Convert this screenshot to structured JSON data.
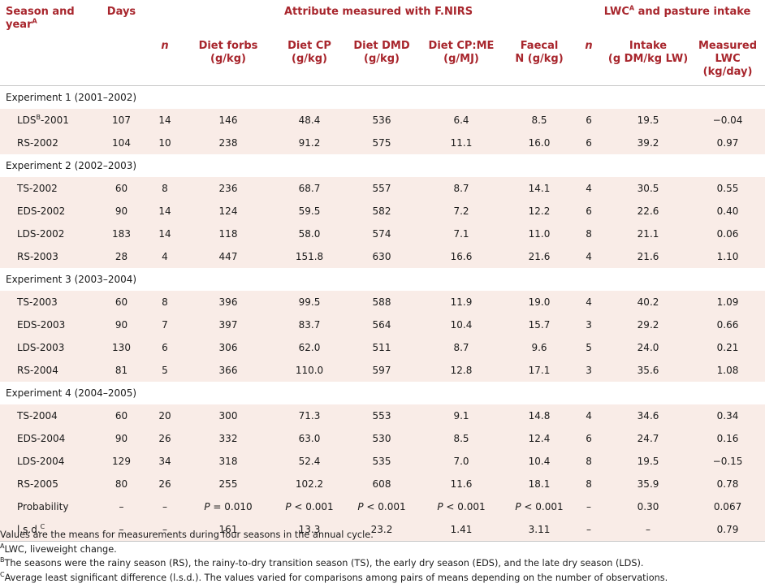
{
  "header": {
    "season_year": "Season and year",
    "season_year_sup": "A",
    "days": "Days",
    "attr_group": "Attribute measured with F.NIRS",
    "lwc_group": "LWC",
    "lwc_group_sup": "A",
    "lwc_group_rest": " and pasture intake",
    "n": "n",
    "diet_forbs": "Diet forbs",
    "diet_forbs_unit": "(g/kg)",
    "diet_cp": "Diet CP",
    "diet_cp_unit": "(g/kg)",
    "diet_dmd": "Diet DMD",
    "diet_dmd_unit": "(g/kg)",
    "diet_cpme": "Diet CP:ME",
    "diet_cpme_unit": "(g/MJ)",
    "faecal": "Faecal",
    "faecal_unit": "N (g/kg)",
    "n2": "n",
    "intake": "Intake",
    "intake_unit": "(g DM/kg LW)",
    "measured": "Measured",
    "measured_l2": "LWC",
    "measured_unit": "(kg/day)"
  },
  "sections": [
    {
      "label": "Experiment 1 (2001–2002)",
      "rows": [
        {
          "season": "LDS",
          "sup": "B",
          "suffix": "-2001",
          "days": "107",
          "n": "14",
          "forbs": "146",
          "cp": "48.4",
          "dmd": "536",
          "cpme": "6.4",
          "faecal": "8.5",
          "n2": "6",
          "intake": "19.5",
          "lwc": "−0.04"
        },
        {
          "season": "RS-2002",
          "sup": "",
          "suffix": "",
          "days": "104",
          "n": "10",
          "forbs": "238",
          "cp": "91.2",
          "dmd": "575",
          "cpme": "11.1",
          "faecal": "16.0",
          "n2": "6",
          "intake": "39.2",
          "lwc": "0.97"
        }
      ]
    },
    {
      "label": "Experiment 2 (2002–2003)",
      "rows": [
        {
          "season": "TS-2002",
          "sup": "",
          "suffix": "",
          "days": "60",
          "n": "8",
          "forbs": "236",
          "cp": "68.7",
          "dmd": "557",
          "cpme": "8.7",
          "faecal": "14.1",
          "n2": "4",
          "intake": "30.5",
          "lwc": "0.55"
        },
        {
          "season": "EDS-2002",
          "sup": "",
          "suffix": "",
          "days": "90",
          "n": "14",
          "forbs": "124",
          "cp": "59.5",
          "dmd": "582",
          "cpme": "7.2",
          "faecal": "12.2",
          "n2": "6",
          "intake": "22.6",
          "lwc": "0.40"
        },
        {
          "season": "LDS-2002",
          "sup": "",
          "suffix": "",
          "days": "183",
          "n": "14",
          "forbs": "118",
          "cp": "58.0",
          "dmd": "574",
          "cpme": "7.1",
          "faecal": "11.0",
          "n2": "8",
          "intake": "21.1",
          "lwc": "0.06"
        },
        {
          "season": "RS-2003",
          "sup": "",
          "suffix": "",
          "days": "28",
          "n": "4",
          "forbs": "447",
          "cp": "151.8",
          "dmd": "630",
          "cpme": "16.6",
          "faecal": "21.6",
          "n2": "4",
          "intake": "21.6",
          "lwc": "1.10"
        }
      ]
    },
    {
      "label": "Experiment 3 (2003–2004)",
      "rows": [
        {
          "season": "TS-2003",
          "sup": "",
          "suffix": "",
          "days": "60",
          "n": "8",
          "forbs": "396",
          "cp": "99.5",
          "dmd": "588",
          "cpme": "11.9",
          "faecal": "19.0",
          "n2": "4",
          "intake": "40.2",
          "lwc": "1.09"
        },
        {
          "season": "EDS-2003",
          "sup": "",
          "suffix": "",
          "days": "90",
          "n": "7",
          "forbs": "397",
          "cp": "83.7",
          "dmd": "564",
          "cpme": "10.4",
          "faecal": "15.7",
          "n2": "3",
          "intake": "29.2",
          "lwc": "0.66"
        },
        {
          "season": "LDS-2003",
          "sup": "",
          "suffix": "",
          "days": "130",
          "n": "6",
          "forbs": "306",
          "cp": "62.0",
          "dmd": "511",
          "cpme": "8.7",
          "faecal": "9.6",
          "n2": "5",
          "intake": "24.0",
          "lwc": "0.21"
        },
        {
          "season": "RS-2004",
          "sup": "",
          "suffix": "",
          "days": "81",
          "n": "5",
          "forbs": "366",
          "cp": "110.0",
          "dmd": "597",
          "cpme": "12.8",
          "faecal": "17.1",
          "n2": "3",
          "intake": "35.6",
          "lwc": "1.08"
        }
      ]
    },
    {
      "label": "Experiment 4 (2004–2005)",
      "rows": [
        {
          "season": "TS-2004",
          "sup": "",
          "suffix": "",
          "days": "60",
          "n": "20",
          "forbs": "300",
          "cp": "71.3",
          "dmd": "553",
          "cpme": "9.1",
          "faecal": "14.8",
          "n2": "4",
          "intake": "34.6",
          "lwc": "0.34"
        },
        {
          "season": "EDS-2004",
          "sup": "",
          "suffix": "",
          "days": "90",
          "n": "26",
          "forbs": "332",
          "cp": "63.0",
          "dmd": "530",
          "cpme": "8.5",
          "faecal": "12.4",
          "n2": "6",
          "intake": "24.7",
          "lwc": "0.16"
        },
        {
          "season": "LDS-2004",
          "sup": "",
          "suffix": "",
          "days": "129",
          "n": "34",
          "forbs": "318",
          "cp": "52.4",
          "dmd": "535",
          "cpme": "7.0",
          "faecal": "10.4",
          "n2": "8",
          "intake": "19.5",
          "lwc": "−0.15"
        },
        {
          "season": "RS-2005",
          "sup": "",
          "suffix": "",
          "days": "80",
          "n": "26",
          "forbs": "255",
          "cp": "102.2",
          "dmd": "608",
          "cpme": "11.6",
          "faecal": "18.1",
          "n2": "8",
          "intake": "35.9",
          "lwc": "0.78"
        }
      ]
    }
  ],
  "probability": {
    "label": "Probability",
    "days": "–",
    "n": "–",
    "forbs_p": "P",
    "forbs_v": " = 0.010",
    "cp_p": "P",
    "cp_v": " < 0.001",
    "dmd_p": "P",
    "dmd_v": " < 0.001",
    "cpme_p": "P",
    "cpme_v": " < 0.001",
    "faecal_p": "P",
    "faecal_v": " < 0.001",
    "n2": "–",
    "intake": "0.30",
    "lwc": "0.067"
  },
  "lsd": {
    "label": "l.s.d.",
    "sup": "C",
    "days": "–",
    "n": "–",
    "forbs": "161",
    "cp": "13.3",
    "dmd": "23.2",
    "cpme": "1.41",
    "faecal": "3.11",
    "n2": "–",
    "intake": "–",
    "lwc": "0.79"
  },
  "footnotes": {
    "main": "Values are the means for measurements during four seasons in the annual cycle.",
    "a_sup": "A",
    "a": "LWC, liveweight change.",
    "b_sup": "B",
    "b": "The seasons were the rainy season (RS), the rainy-to-dry transition season (TS), the early dry season (EDS), and the late dry season (LDS).",
    "c_sup": "C",
    "c": "Average least significant difference (l.s.d.). The values varied for comparisons among pairs of means depending on the number of observations."
  },
  "colors": {
    "header_red": "#a8262d",
    "shade": "#f9ece7",
    "rule": "#c8c8c8"
  }
}
